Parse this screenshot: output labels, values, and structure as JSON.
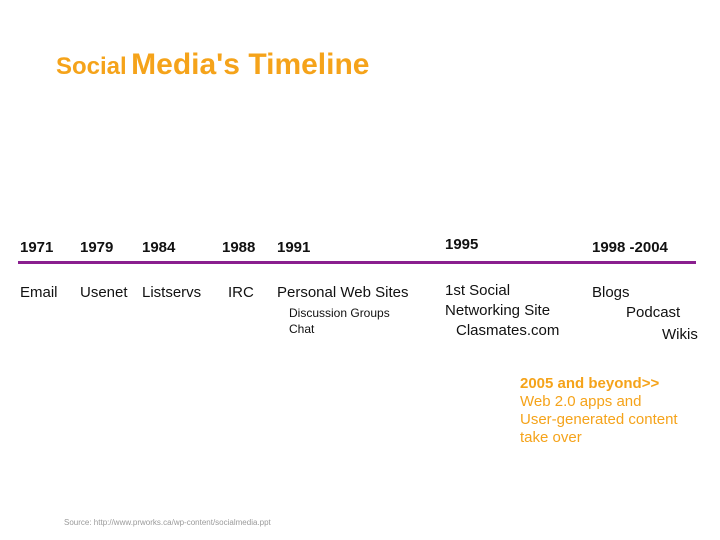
{
  "title": {
    "part1": "Social",
    "part2": "Media's Timeline"
  },
  "years": [
    "1971",
    "1979",
    "1984",
    "1988",
    "1991",
    "1995",
    "1998 -2004"
  ],
  "events": {
    "email": "Email",
    "usenet": "Usenet",
    "listservs": "Listservs",
    "irc": "IRC",
    "personal_web_sites": "Personal Web Sites",
    "discussion_groups": "Discussion Groups",
    "chat": "Chat",
    "social_line1": "1st Social",
    "social_line2": "Networking Site",
    "classmates": "Clasmates.com",
    "blogs": "Blogs",
    "podcast": "Podcast",
    "wikis": "Wikis"
  },
  "future": {
    "heading": "2005 and beyond>>",
    "lines": [
      "Web 2.0 apps and",
      "User-generated content",
      "take over"
    ]
  },
  "source": "Source: http://www.prworks.ca/wp-content/socialmedia.ppt",
  "colors": {
    "accent": "#f5a31a",
    "timeline": "#8a1f8f"
  }
}
